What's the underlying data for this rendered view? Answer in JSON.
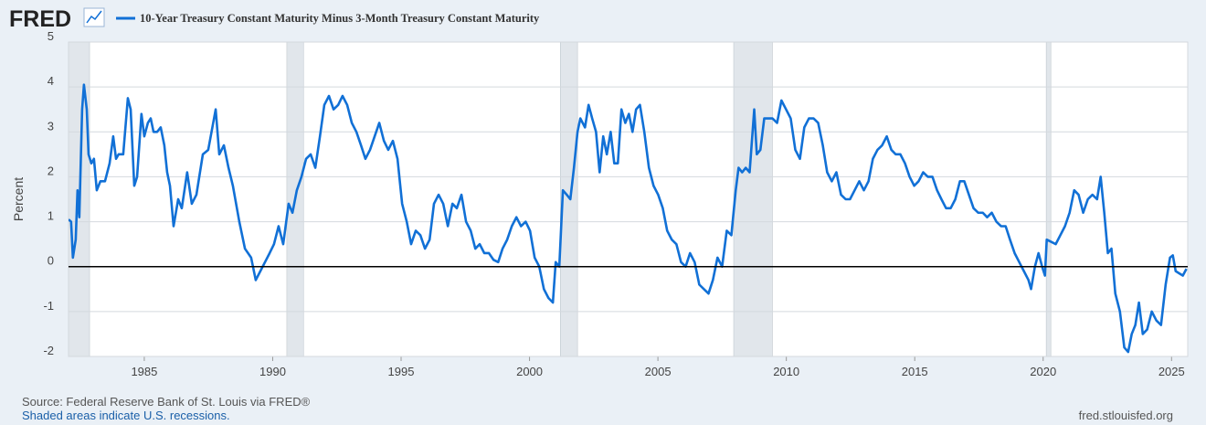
{
  "chart_data": {
    "type": "line",
    "logo": "FRED",
    "ylabel": "Percent",
    "source": "Source: Federal Reserve Bank of St. Louis via FRED®",
    "note": "Shaded areas indicate U.S. recessions.",
    "url": "fred.stlouisfed.org",
    "grid": true,
    "hline": 0,
    "recession_color": "#e1e6eb",
    "recessions": [
      [
        1981.55,
        1982.87
      ],
      [
        1990.55,
        1991.2
      ],
      [
        2001.2,
        2001.87
      ],
      [
        2007.95,
        2009.46
      ],
      [
        2020.12,
        2020.3
      ]
    ],
    "xlim": [
      1982.05,
      2025.63
    ],
    "ylim": [
      -2,
      5
    ],
    "xticks": [
      1985,
      1990,
      1995,
      2000,
      2005,
      2010,
      2015,
      2020,
      2025
    ],
    "yticks": [
      -2,
      -1,
      0,
      1,
      2,
      3,
      4,
      5
    ],
    "x": [
      1982.05,
      1982.15,
      1982.22,
      1982.33,
      1982.4,
      1982.47,
      1982.58,
      1982.65,
      1982.76,
      1982.83,
      1982.94,
      1983.04,
      1983.15,
      1983.29,
      1983.47,
      1983.65,
      1983.79,
      1983.9,
      1984.0,
      1984.18,
      1984.36,
      1984.47,
      1984.61,
      1984.72,
      1984.89,
      1985.0,
      1985.14,
      1985.25,
      1985.36,
      1985.5,
      1985.64,
      1985.78,
      1985.89,
      1986.0,
      1986.14,
      1986.32,
      1986.46,
      1986.67,
      1986.85,
      1987.03,
      1987.28,
      1987.49,
      1987.78,
      1987.92,
      1988.1,
      1988.28,
      1988.45,
      1988.7,
      1988.92,
      1989.16,
      1989.34,
      1989.52,
      1989.7,
      1989.88,
      1990.05,
      1990.23,
      1990.41,
      1990.62,
      1990.77,
      1990.94,
      1991.12,
      1991.3,
      1991.48,
      1991.66,
      1991.84,
      1992.01,
      1992.19,
      1992.37,
      1992.55,
      1992.72,
      1992.9,
      1993.08,
      1993.26,
      1993.44,
      1993.61,
      1993.79,
      1993.97,
      1994.15,
      1994.33,
      1994.5,
      1994.68,
      1994.86,
      1995.04,
      1995.22,
      1995.39,
      1995.57,
      1995.75,
      1995.93,
      1996.11,
      1996.28,
      1996.46,
      1996.64,
      1996.82,
      1997.0,
      1997.17,
      1997.35,
      1997.53,
      1997.71,
      1997.89,
      1998.06,
      1998.24,
      1998.42,
      1998.6,
      1998.78,
      1998.95,
      1999.13,
      1999.31,
      1999.49,
      1999.67,
      1999.85,
      2000.02,
      2000.2,
      2000.38,
      2000.56,
      2000.74,
      2000.91,
      2001.02,
      2001.16,
      2001.3,
      2001.45,
      2001.59,
      2001.73,
      2001.87,
      2001.98,
      2002.16,
      2002.3,
      2002.44,
      2002.59,
      2002.73,
      2002.87,
      2003.01,
      2003.16,
      2003.3,
      2003.44,
      2003.58,
      2003.73,
      2003.87,
      2004.01,
      2004.15,
      2004.3,
      2004.47,
      2004.65,
      2004.83,
      2005.01,
      2005.19,
      2005.36,
      2005.54,
      2005.72,
      2005.9,
      2006.08,
      2006.25,
      2006.43,
      2006.61,
      2006.79,
      2006.97,
      2007.14,
      2007.32,
      2007.5,
      2007.68,
      2007.86,
      2008.03,
      2008.14,
      2008.28,
      2008.42,
      2008.57,
      2008.75,
      2008.85,
      2008.99,
      2009.14,
      2009.28,
      2009.46,
      2009.64,
      2009.81,
      2009.99,
      2010.17,
      2010.35,
      2010.53,
      2010.7,
      2010.88,
      2011.06,
      2011.24,
      2011.42,
      2011.59,
      2011.77,
      2011.95,
      2012.13,
      2012.31,
      2012.48,
      2012.66,
      2012.84,
      2013.02,
      2013.2,
      2013.37,
      2013.55,
      2013.73,
      2013.91,
      2014.09,
      2014.26,
      2014.44,
      2014.62,
      2014.8,
      2014.98,
      2015.15,
      2015.33,
      2015.51,
      2015.69,
      2015.87,
      2016.04,
      2016.22,
      2016.4,
      2016.58,
      2016.76,
      2016.93,
      2017.11,
      2017.29,
      2017.47,
      2017.65,
      2017.82,
      2018.0,
      2018.18,
      2018.36,
      2018.54,
      2018.71,
      2018.89,
      2019.07,
      2019.25,
      2019.43,
      2019.53,
      2019.68,
      2019.82,
      2019.96,
      2020.07,
      2020.14,
      2020.32,
      2020.49,
      2020.67,
      2020.85,
      2021.03,
      2021.21,
      2021.38,
      2021.56,
      2021.74,
      2021.92,
      2022.1,
      2022.24,
      2022.38,
      2022.52,
      2022.66,
      2022.81,
      2022.99,
      2023.16,
      2023.31,
      2023.45,
      2023.59,
      2023.73,
      2023.88,
      2024.05,
      2024.23,
      2024.41,
      2024.59,
      2024.77,
      2024.94,
      2025.05,
      2025.16,
      2025.3,
      2025.44,
      2025.58
    ],
    "series": [
      {
        "name": "10-Year Treasury Constant Maturity Minus 3-Month Treasury Constant Maturity",
        "color": "#1170d6",
        "values": [
          1.05,
          1.0,
          0.2,
          0.6,
          1.7,
          1.1,
          3.5,
          4.05,
          3.5,
          2.5,
          2.3,
          2.4,
          1.7,
          1.9,
          1.9,
          2.3,
          2.9,
          2.4,
          2.5,
          2.5,
          3.75,
          3.5,
          1.8,
          2.0,
          3.4,
          2.9,
          3.2,
          3.3,
          3.0,
          3.0,
          3.1,
          2.7,
          2.1,
          1.8,
          0.9,
          1.5,
          1.3,
          2.1,
          1.4,
          1.6,
          2.5,
          2.6,
          3.5,
          2.5,
          2.7,
          2.2,
          1.8,
          1.0,
          0.4,
          0.2,
          -0.3,
          -0.1,
          0.1,
          0.3,
          0.5,
          0.9,
          0.5,
          1.4,
          1.2,
          1.7,
          2.0,
          2.4,
          2.5,
          2.2,
          2.9,
          3.6,
          3.8,
          3.5,
          3.6,
          3.8,
          3.6,
          3.2,
          3.0,
          2.7,
          2.4,
          2.6,
          2.9,
          3.2,
          2.8,
          2.6,
          2.8,
          2.4,
          1.4,
          1.0,
          0.5,
          0.8,
          0.7,
          0.4,
          0.6,
          1.4,
          1.6,
          1.4,
          0.9,
          1.4,
          1.3,
          1.6,
          1.0,
          0.8,
          0.4,
          0.5,
          0.3,
          0.3,
          0.15,
          0.1,
          0.4,
          0.6,
          0.9,
          1.1,
          0.9,
          1.0,
          0.8,
          0.2,
          0.0,
          -0.5,
          -0.7,
          -0.8,
          0.1,
          0.0,
          1.7,
          1.6,
          1.5,
          2.2,
          3.0,
          3.3,
          3.1,
          3.6,
          3.3,
          3.0,
          2.1,
          2.9,
          2.5,
          3.0,
          2.3,
          2.3,
          3.5,
          3.2,
          3.4,
          3.0,
          3.5,
          3.6,
          3.0,
          2.2,
          1.8,
          1.6,
          1.3,
          0.8,
          0.6,
          0.5,
          0.1,
          0.0,
          0.3,
          0.1,
          -0.4,
          -0.5,
          -0.6,
          -0.3,
          0.2,
          0.0,
          0.8,
          0.7,
          1.7,
          2.2,
          2.1,
          2.2,
          2.1,
          3.5,
          2.5,
          2.6,
          3.3,
          3.3,
          3.3,
          3.2,
          3.7,
          3.5,
          3.3,
          2.6,
          2.4,
          3.1,
          3.3,
          3.3,
          3.2,
          2.7,
          2.1,
          1.9,
          2.1,
          1.6,
          1.5,
          1.5,
          1.7,
          1.9,
          1.7,
          1.9,
          2.4,
          2.6,
          2.7,
          2.9,
          2.6,
          2.5,
          2.5,
          2.3,
          2.0,
          1.8,
          1.9,
          2.1,
          2.0,
          2.0,
          1.7,
          1.5,
          1.3,
          1.3,
          1.5,
          1.9,
          1.9,
          1.6,
          1.3,
          1.2,
          1.2,
          1.1,
          1.2,
          1.0,
          0.9,
          0.9,
          0.6,
          0.3,
          0.1,
          -0.1,
          -0.3,
          -0.5,
          0.0,
          0.3,
          0.0,
          -0.2,
          0.6,
          0.55,
          0.5,
          0.7,
          0.9,
          1.2,
          1.7,
          1.6,
          1.2,
          1.5,
          1.6,
          1.5,
          2.0,
          1.2,
          0.3,
          0.4,
          -0.6,
          -1.0,
          -1.8,
          -1.9,
          -1.5,
          -1.3,
          -0.8,
          -1.5,
          -1.4,
          -1.0,
          -1.2,
          -1.3,
          -0.4,
          0.2,
          0.25,
          -0.1,
          -0.15,
          -0.2,
          -0.05
        ]
      }
    ]
  }
}
